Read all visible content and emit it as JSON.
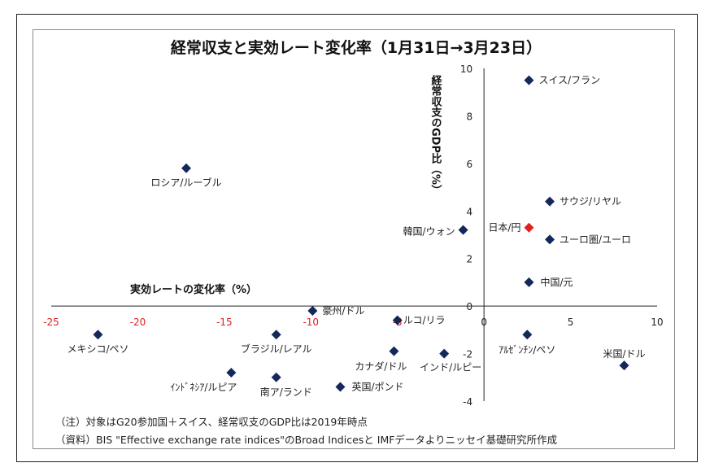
{
  "chart_data": {
    "type": "scatter",
    "title": "経常収支と実効レート変化率（1月31日→3月23日）",
    "xlabel": "実効レートの変化率（%）",
    "ylabel": "経常収支のGDP比（%）",
    "xlim": [
      -25,
      10
    ],
    "ylim": [
      -4,
      10
    ],
    "xticks": [
      "-25",
      "-20",
      "-15",
      "-10",
      "-5",
      "0",
      "5",
      "10"
    ],
    "yticks": [
      "10",
      "8",
      "6",
      "4",
      "2",
      "0",
      "-2",
      "-4"
    ],
    "x_tick_color": "#e02020",
    "marker_color": "#14285a",
    "highlight_color": "#e02020",
    "grid": false,
    "points": [
      {
        "label": "スイス/フラン",
        "x": 2.6,
        "y": 9.5
      },
      {
        "label": "ロシア/ルーブル",
        "x": -17.2,
        "y": 5.8
      },
      {
        "label": "サウジ/リヤル",
        "x": 3.8,
        "y": 4.4
      },
      {
        "label": "日本/円",
        "x": 2.6,
        "y": 3.3,
        "highlight": true
      },
      {
        "label": "韓国/ウォン",
        "x": -1.2,
        "y": 3.2
      },
      {
        "label": "ユーロ圏/ユーロ",
        "x": 3.8,
        "y": 2.8
      },
      {
        "label": "中国/元",
        "x": 2.6,
        "y": 1.0
      },
      {
        "label": "豪州/ドル",
        "x": -9.9,
        "y": -0.2
      },
      {
        "label": "トルコ/リラ",
        "x": -5.0,
        "y": -0.6
      },
      {
        "label": "メキシコ/ペソ",
        "x": -22.3,
        "y": -1.2
      },
      {
        "label": "ブラジル/レアル",
        "x": -12.0,
        "y": -1.2
      },
      {
        "label": "ｱﾙｾﾞﾝﾁﾝ/ペソ",
        "x": 2.5,
        "y": -1.2
      },
      {
        "label": "カナダ/ドル",
        "x": -5.2,
        "y": -1.9
      },
      {
        "label": "インド/ルピー",
        "x": -2.3,
        "y": -2.0
      },
      {
        "label": "米国/ドル",
        "x": 8.1,
        "y": -2.5
      },
      {
        "label": "ｲﾝﾄﾞﾈｼｱ/ルピア",
        "x": -14.6,
        "y": -2.8
      },
      {
        "label": "南ア/ランド",
        "x": -12.0,
        "y": -3.0
      },
      {
        "label": "英国/ポンド",
        "x": -8.3,
        "y": -3.4
      }
    ]
  },
  "notes": {
    "note1": "（注）対象はG20参加国＋スイス、経常収支のGDP比は2019年時点",
    "note2": "（資料）BIS \"Effective exchange rate indices\"のBroad Indicesと IMFデータよりニッセイ基礎研究所作成"
  }
}
